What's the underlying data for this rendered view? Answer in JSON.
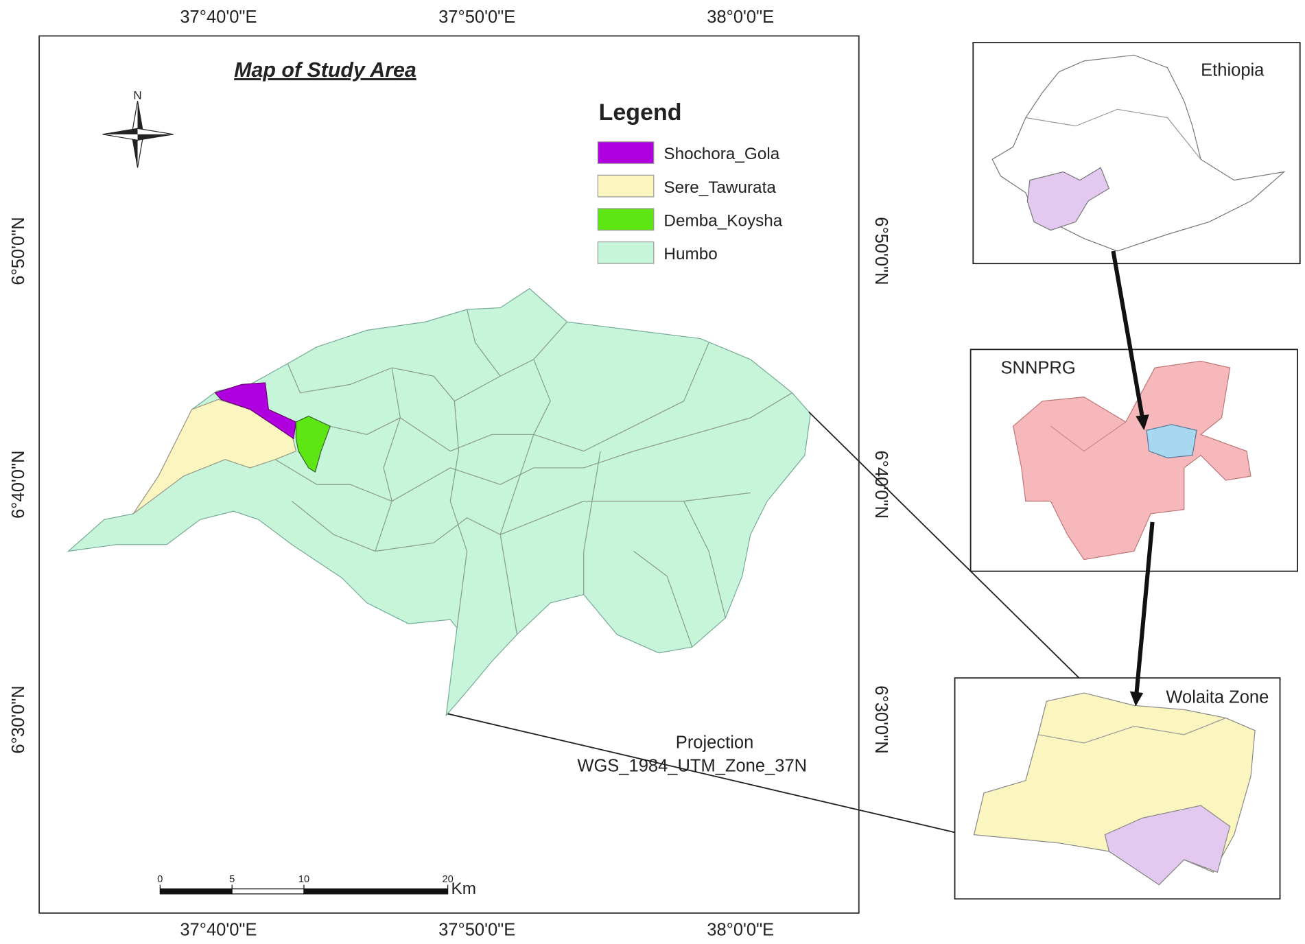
{
  "map": {
    "title": "Map of Study Area",
    "north": "N",
    "legend": {
      "title": "Legend",
      "items": [
        {
          "name": "Shochora_Gola",
          "color": "#b000e0"
        },
        {
          "name": "Sere_Tawurata",
          "color": "#fbf6c0"
        },
        {
          "name": "Demba_Koysha",
          "color": "#5ee614"
        },
        {
          "name": "Humbo",
          "color": "#c6f5d9"
        }
      ]
    },
    "longitude_labels": [
      "37°40'0\"E",
      "37°50'0\"E",
      "38°0'0\"E"
    ],
    "latitude_labels": [
      "6°50'0\"N",
      "6°40'0\"N",
      "6°30'0\"N"
    ],
    "scale_bar": {
      "ticks": [
        0,
        5,
        10,
        20
      ],
      "unit": "Km"
    },
    "projection": [
      "Projection",
      "WGS_1984_UTM_Zone_37N"
    ],
    "insets": [
      "Ethiopia",
      "SNNPRG",
      "Wolaita Zone"
    ]
  }
}
